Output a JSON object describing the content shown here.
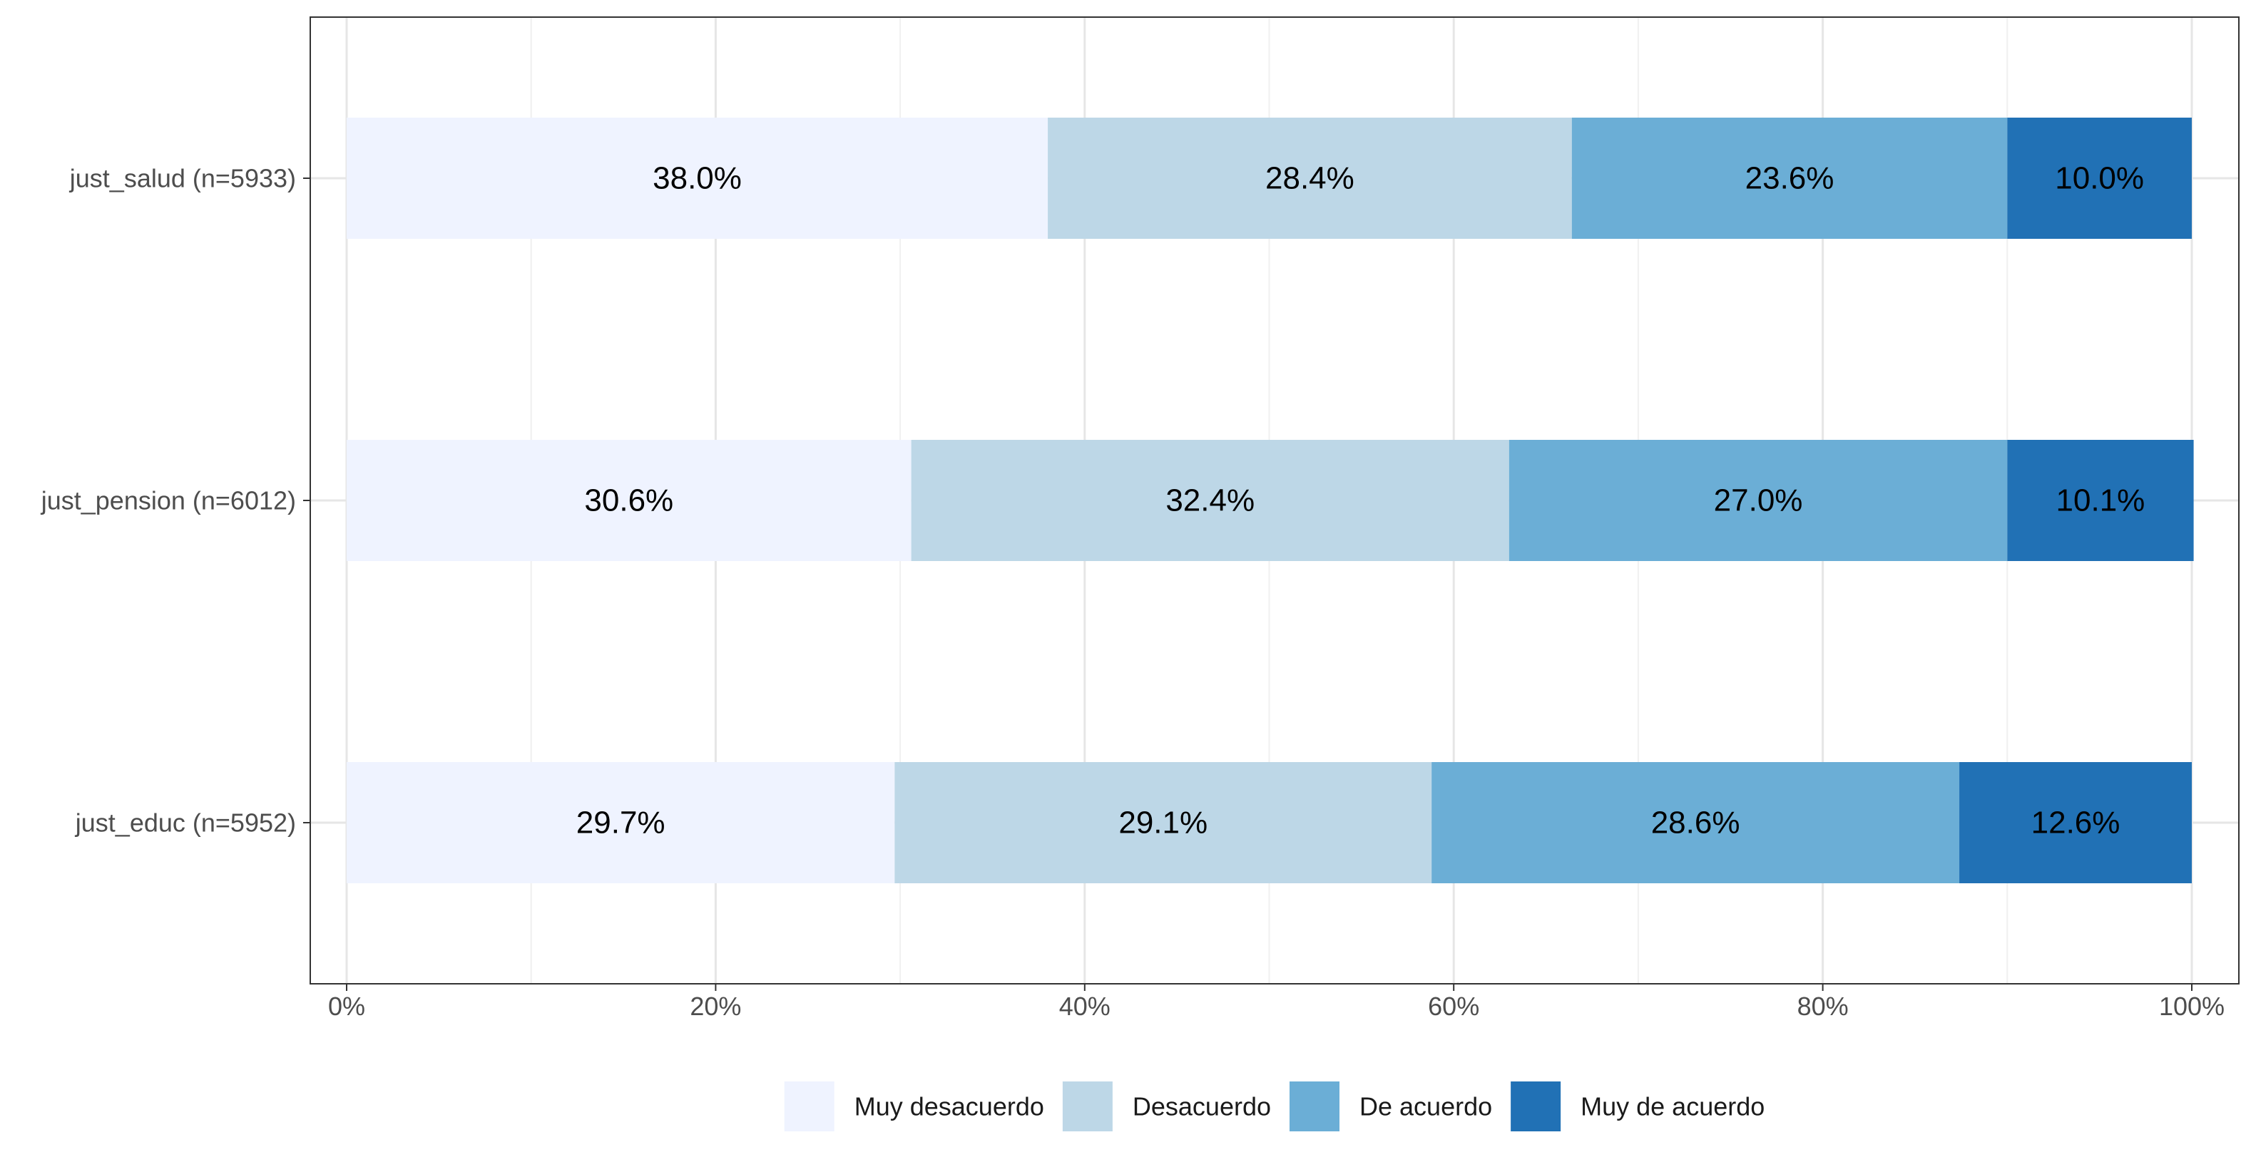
{
  "chart_data": {
    "type": "bar",
    "orientation": "horizontal",
    "stacked": true,
    "percent": true,
    "categories": [
      "just_salud (n=5933)",
      "just_pension (n=6012)",
      "just_educ (n=5952)"
    ],
    "series": [
      {
        "name": "Muy desacuerdo",
        "color": "#eff3ff",
        "values": [
          38.0,
          30.6,
          29.7
        ],
        "labels": [
          "38.0%",
          "30.6%",
          "29.7%"
        ]
      },
      {
        "name": "Desacuerdo",
        "color": "#bdd7e7",
        "values": [
          28.4,
          32.4,
          29.1
        ],
        "labels": [
          "28.4%",
          "32.4%",
          "29.1%"
        ]
      },
      {
        "name": "De acuerdo",
        "color": "#6baed6",
        "values": [
          23.6,
          27.0,
          28.6
        ],
        "labels": [
          "23.6%",
          "27.0%",
          "28.6%"
        ]
      },
      {
        "name": "Muy de acuerdo",
        "color": "#2171b5",
        "values": [
          10.0,
          10.1,
          12.6
        ],
        "labels": [
          "10.0%",
          "10.1%",
          "12.6%"
        ]
      }
    ],
    "x_ticks": [
      0,
      20,
      40,
      60,
      80,
      100
    ],
    "x_tick_labels": [
      "0%",
      "20%",
      "40%",
      "60%",
      "80%",
      "100%"
    ],
    "xlim": [
      0,
      100
    ],
    "grid": true,
    "legend_position": "bottom",
    "title": "",
    "xlabel": "",
    "ylabel": ""
  }
}
